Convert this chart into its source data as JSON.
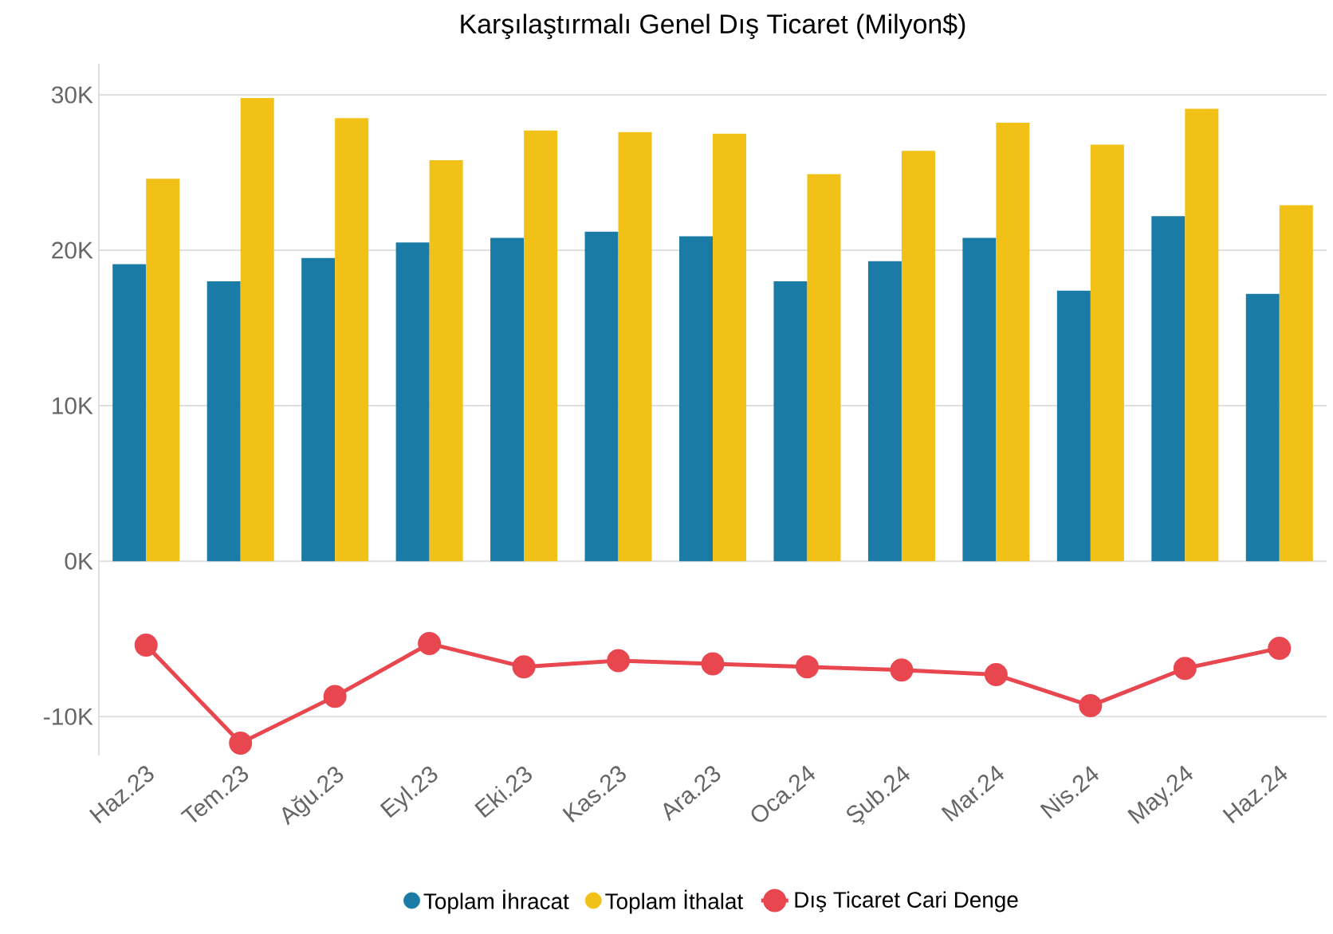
{
  "chart_data": {
    "type": "bar",
    "title": "Karşılaştırmalı Genel Dış Ticaret (Milyon$)",
    "categories": [
      "Haz.23",
      "Tem.23",
      "Ağu.23",
      "Eyl.23",
      "Eki.23",
      "Kas.23",
      "Ara.23",
      "Oca.24",
      "Şub.24",
      "Mar.24",
      "Nis.24",
      "May.24",
      "Haz.24"
    ],
    "series": [
      {
        "name": "Toplam İhracat",
        "color": "#1a7ba6",
        "values": [
          19100,
          18000,
          19500,
          20500,
          20800,
          21200,
          20900,
          18000,
          19300,
          20800,
          17400,
          22200,
          17200
        ]
      },
      {
        "name": "Toplam İthalat",
        "color": "#f2c118",
        "values": [
          24600,
          29800,
          28500,
          25800,
          27700,
          27600,
          27500,
          24900,
          26400,
          28200,
          26800,
          29100,
          22900
        ]
      },
      {
        "name": "Dış Ticaret Cari Denge",
        "type": "line",
        "marker": "circle",
        "color": "#e8474f",
        "values": [
          -5400,
          -11700,
          -8700,
          -5300,
          -6800,
          -6400,
          -6600,
          -6800,
          -7000,
          -7300,
          -9300,
          -6900,
          -5600
        ]
      }
    ],
    "ylim": [
      -12500,
      32000
    ],
    "yticks": [
      {
        "value": -10000,
        "label": "-10K"
      },
      {
        "value": 0,
        "label": "0K"
      },
      {
        "value": 10000,
        "label": "10K"
      },
      {
        "value": 20000,
        "label": "20K"
      },
      {
        "value": 30000,
        "label": "30K"
      }
    ],
    "grid": "y",
    "legend": "bottom"
  }
}
